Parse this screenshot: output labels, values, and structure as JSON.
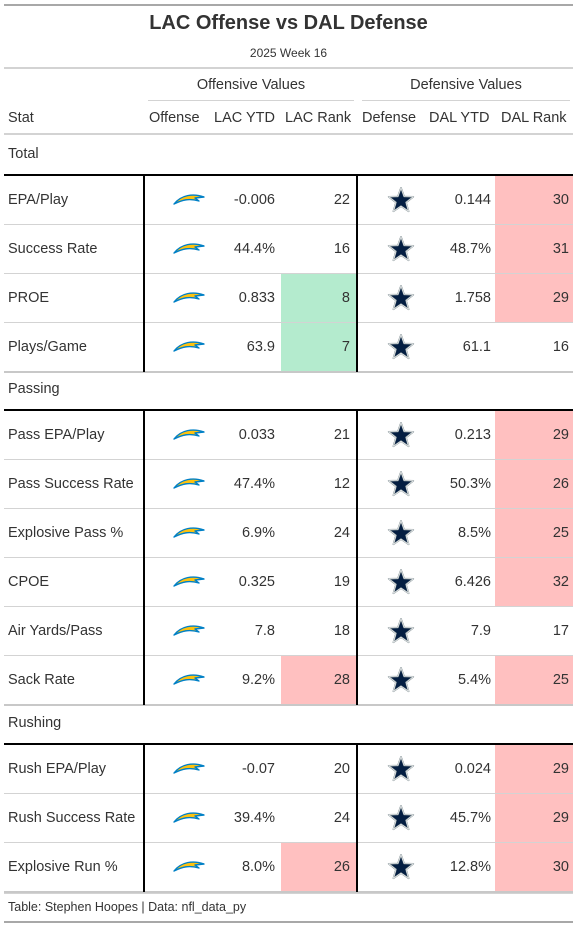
{
  "title": "LAC Offense vs DAL Defense",
  "subtitle": "2025 Week 16",
  "spanners": {
    "offense": "Offensive Values",
    "defense": "Defensive Values"
  },
  "columns": {
    "stat": "Stat",
    "offense": "Offense",
    "off_ytd": "LAC YTD",
    "off_rank": "LAC Rank",
    "defense": "Defense",
    "def_ytd": "DAL YTD",
    "def_rank": "DAL Rank"
  },
  "icons": {
    "offense": "chargers-bolt-logo",
    "defense": "cowboys-star-logo"
  },
  "colors": {
    "good": "#b4ebce",
    "bad": "#ffc0c0",
    "bolt_fill": "#ffc20e",
    "bolt_stroke": "#0080c6",
    "star_fill": "#041e42",
    "star_outline": "#869397"
  },
  "groups": [
    {
      "label": "Total",
      "rows": [
        {
          "stat": "EPA/Play",
          "off_ytd": "-0.006",
          "off_rank": "22",
          "off_tier": "",
          "def_ytd": "0.144",
          "def_rank": "30",
          "def_tier": "bad"
        },
        {
          "stat": "Success Rate",
          "off_ytd": "44.4%",
          "off_rank": "16",
          "off_tier": "",
          "def_ytd": "48.7%",
          "def_rank": "31",
          "def_tier": "bad"
        },
        {
          "stat": "PROE",
          "off_ytd": "0.833",
          "off_rank": "8",
          "off_tier": "good",
          "def_ytd": "1.758",
          "def_rank": "29",
          "def_tier": "bad"
        },
        {
          "stat": "Plays/Game",
          "off_ytd": "63.9",
          "off_rank": "7",
          "off_tier": "good",
          "def_ytd": "61.1",
          "def_rank": "16",
          "def_tier": ""
        }
      ]
    },
    {
      "label": "Passing",
      "rows": [
        {
          "stat": "Pass EPA/Play",
          "off_ytd": "0.033",
          "off_rank": "21",
          "off_tier": "",
          "def_ytd": "0.213",
          "def_rank": "29",
          "def_tier": "bad"
        },
        {
          "stat": "Pass Success Rate",
          "off_ytd": "47.4%",
          "off_rank": "12",
          "off_tier": "",
          "def_ytd": "50.3%",
          "def_rank": "26",
          "def_tier": "bad"
        },
        {
          "stat": "Explosive Pass %",
          "off_ytd": "6.9%",
          "off_rank": "24",
          "off_tier": "",
          "def_ytd": "8.5%",
          "def_rank": "25",
          "def_tier": "bad"
        },
        {
          "stat": "CPOE",
          "off_ytd": "0.325",
          "off_rank": "19",
          "off_tier": "",
          "def_ytd": "6.426",
          "def_rank": "32",
          "def_tier": "bad"
        },
        {
          "stat": "Air Yards/Pass",
          "off_ytd": "7.8",
          "off_rank": "18",
          "off_tier": "",
          "def_ytd": "7.9",
          "def_rank": "17",
          "def_tier": ""
        },
        {
          "stat": "Sack Rate",
          "off_ytd": "9.2%",
          "off_rank": "28",
          "off_tier": "bad",
          "def_ytd": "5.4%",
          "def_rank": "25",
          "def_tier": "bad"
        }
      ]
    },
    {
      "label": "Rushing",
      "rows": [
        {
          "stat": "Rush EPA/Play",
          "off_ytd": "-0.07",
          "off_rank": "20",
          "off_tier": "",
          "def_ytd": "0.024",
          "def_rank": "29",
          "def_tier": "bad"
        },
        {
          "stat": "Rush Success Rate",
          "off_ytd": "39.4%",
          "off_rank": "24",
          "off_tier": "",
          "def_ytd": "45.7%",
          "def_rank": "29",
          "def_tier": "bad"
        },
        {
          "stat": "Explosive Run %",
          "off_ytd": "8.0%",
          "off_rank": "26",
          "off_tier": "bad",
          "def_ytd": "12.8%",
          "def_rank": "30",
          "def_tier": "bad"
        }
      ]
    }
  ],
  "footer": "Table: Stephen Hoopes | Data: nfl_data_py"
}
